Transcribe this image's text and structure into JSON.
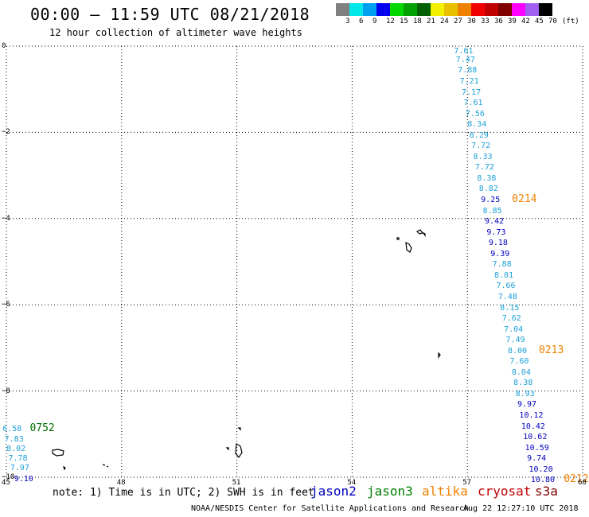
{
  "header": {
    "title": "00:00 – 11:59 UTC 08/21/2018",
    "subtitle": "12 hour collection of altimeter wave heights"
  },
  "legend": {
    "colors": [
      "#808080",
      "#00e8e8",
      "#00a0f0",
      "#0000f0",
      "#00d800",
      "#00a000",
      "#006000",
      "#f0f000",
      "#e8c000",
      "#f08000",
      "#f00000",
      "#c00000",
      "#800000",
      "#ff00ff",
      "#a060f0",
      "#000000"
    ],
    "labels": [
      "3",
      "6",
      "9",
      "12",
      "15",
      "18",
      "21",
      "24",
      "27",
      "30",
      "33",
      "36",
      "39",
      "42",
      "45",
      "70",
      "(ft)"
    ]
  },
  "axes": {
    "x_ticks": [
      "45",
      "48",
      "51",
      "54",
      "57",
      "60"
    ],
    "y_ticks": [
      "0",
      "−2",
      "−4",
      "−6",
      "−8",
      "−10"
    ]
  },
  "colors": {
    "jason2": "#0000c0",
    "jason3": "#008000",
    "altika": "#f08000",
    "cryosat": "#c00000",
    "s3a": "#800000",
    "light": "#1ca0d8",
    "dark": "#0000c0",
    "green": "#007000"
  },
  "observations": [
    {
      "value": "7.61",
      "lon": 56.9,
      "lat": -0.13,
      "tone": "light"
    },
    {
      "value": "7.47",
      "lon": 56.95,
      "lat": -0.33,
      "tone": "light"
    },
    {
      "value": "7.88",
      "lon": 57.0,
      "lat": -0.58,
      "tone": "light"
    },
    {
      "value": "7.21",
      "lon": 57.05,
      "lat": -0.83,
      "tone": "light"
    },
    {
      "value": "7.17",
      "lon": 57.1,
      "lat": -1.08,
      "tone": "light"
    },
    {
      "value": "7.61",
      "lon": 57.15,
      "lat": -1.33,
      "tone": "light"
    },
    {
      "value": "7.56",
      "lon": 57.2,
      "lat": -1.58,
      "tone": "light"
    },
    {
      "value": "8.34",
      "lon": 57.25,
      "lat": -1.83,
      "tone": "light"
    },
    {
      "value": "8.29",
      "lon": 57.3,
      "lat": -2.08,
      "tone": "light"
    },
    {
      "value": "7.72",
      "lon": 57.35,
      "lat": -2.33,
      "tone": "light"
    },
    {
      "value": "8.33",
      "lon": 57.4,
      "lat": -2.58,
      "tone": "light"
    },
    {
      "value": "7.72",
      "lon": 57.45,
      "lat": -2.83,
      "tone": "light"
    },
    {
      "value": "8.38",
      "lon": 57.5,
      "lat": -3.08,
      "tone": "light"
    },
    {
      "value": "8.82",
      "lon": 57.55,
      "lat": -3.33,
      "tone": "light"
    },
    {
      "value": "9.25",
      "lon": 57.6,
      "lat": -3.58,
      "tone": "dark"
    },
    {
      "value": "8.85",
      "lon": 57.65,
      "lat": -3.83,
      "tone": "light"
    },
    {
      "value": "9.42",
      "lon": 57.7,
      "lat": -4.08,
      "tone": "dark"
    },
    {
      "value": "9.73",
      "lon": 57.75,
      "lat": -4.33,
      "tone": "dark"
    },
    {
      "value": "9.18",
      "lon": 57.8,
      "lat": -4.58,
      "tone": "dark"
    },
    {
      "value": "9.39",
      "lon": 57.85,
      "lat": -4.83,
      "tone": "dark"
    },
    {
      "value": "7.88",
      "lon": 57.9,
      "lat": -5.08,
      "tone": "light"
    },
    {
      "value": "8.01",
      "lon": 57.95,
      "lat": -5.33,
      "tone": "light"
    },
    {
      "value": "7.66",
      "lon": 58.0,
      "lat": -5.58,
      "tone": "light"
    },
    {
      "value": "7.48",
      "lon": 58.05,
      "lat": -5.83,
      "tone": "light"
    },
    {
      "value": "8.15",
      "lon": 58.1,
      "lat": -6.08,
      "tone": "light"
    },
    {
      "value": "7.62",
      "lon": 58.15,
      "lat": -6.33,
      "tone": "light"
    },
    {
      "value": "7.04",
      "lon": 58.2,
      "lat": -6.58,
      "tone": "light"
    },
    {
      "value": "7.49",
      "lon": 58.25,
      "lat": -6.83,
      "tone": "light"
    },
    {
      "value": "8.00",
      "lon": 58.3,
      "lat": -7.08,
      "tone": "light"
    },
    {
      "value": "7.60",
      "lon": 58.35,
      "lat": -7.33,
      "tone": "light"
    },
    {
      "value": "8.04",
      "lon": 58.4,
      "lat": -7.58,
      "tone": "light"
    },
    {
      "value": "8.38",
      "lon": 58.45,
      "lat": -7.83,
      "tone": "light"
    },
    {
      "value": "8.93",
      "lon": 58.5,
      "lat": -8.08,
      "tone": "light"
    },
    {
      "value": "9.97",
      "lon": 58.55,
      "lat": -8.33,
      "tone": "dark"
    },
    {
      "value": "10.12",
      "lon": 58.6,
      "lat": -8.58,
      "tone": "dark"
    },
    {
      "value": "10.42",
      "lon": 58.65,
      "lat": -8.83,
      "tone": "dark"
    },
    {
      "value": "10.62",
      "lon": 58.7,
      "lat": -9.08,
      "tone": "dark"
    },
    {
      "value": "10.59",
      "lon": 58.75,
      "lat": -9.33,
      "tone": "dark"
    },
    {
      "value": "9.74",
      "lon": 58.8,
      "lat": -9.58,
      "tone": "dark"
    },
    {
      "value": "10.20",
      "lon": 58.85,
      "lat": -9.83,
      "tone": "dark"
    },
    {
      "value": "10.80",
      "lon": 58.9,
      "lat": -10.08,
      "tone": "dark"
    },
    {
      "value": "6.58",
      "lon": 45.15,
      "lat": -8.9,
      "tone": "light"
    },
    {
      "value": "7.83",
      "lon": 45.2,
      "lat": -9.13,
      "tone": "light"
    },
    {
      "value": "8.02",
      "lon": 45.25,
      "lat": -9.35,
      "tone": "light"
    },
    {
      "value": "7.78",
      "lon": 45.3,
      "lat": -9.58,
      "tone": "light"
    },
    {
      "value": "7.97",
      "lon": 45.35,
      "lat": -9.8,
      "tone": "light"
    },
    {
      "value": "9.10",
      "lon": 45.45,
      "lat": -10.05,
      "tone": "dark"
    }
  ],
  "time_labels": [
    {
      "text": "0214",
      "lon": 58.45,
      "lat": -3.58,
      "color": "#f08000"
    },
    {
      "text": "0213",
      "lon": 59.15,
      "lat": -7.08,
      "color": "#f08000"
    },
    {
      "text": "0212",
      "lon": 59.8,
      "lat": -10.08,
      "color": "#f08000"
    },
    {
      "text": "0752",
      "lon": 45.9,
      "lat": -8.9,
      "color": "#007000"
    }
  ],
  "note": "note: 1) Time is in UTC; 2) SWH is in feet",
  "satellites": [
    {
      "name": "jason2",
      "color": "#0000c0"
    },
    {
      "name": "jason3",
      "color": "#008000"
    },
    {
      "name": "altika",
      "color": "#f08000"
    },
    {
      "name": "cryosat",
      "color": "#c00000"
    },
    {
      "name": "s3a",
      "color": "#800000"
    }
  ],
  "footer": {
    "credit": "NOAA/NESDIS Center for Satellite Applications and Research",
    "timestamp": "Aug 22 12:27:10 UTC 2018"
  }
}
